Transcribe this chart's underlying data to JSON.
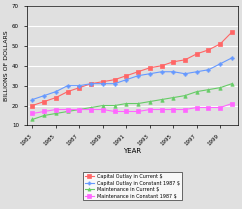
{
  "years": [
    1983,
    1984,
    1985,
    1986,
    1987,
    1988,
    1989,
    1990,
    1991,
    1992,
    1993,
    1994,
    1995,
    1996,
    1997,
    1998,
    1999,
    2000
  ],
  "capital_outlay_current": [
    20,
    22,
    24,
    27,
    29,
    31,
    32,
    33,
    35,
    37,
    39,
    40,
    42,
    43,
    46,
    48,
    51,
    57
  ],
  "capital_outlay_constant": [
    23,
    25,
    27,
    30,
    30,
    31,
    31,
    31,
    33,
    35,
    36,
    37,
    37,
    36,
    37,
    38,
    41,
    44
  ],
  "maintenance_current": [
    13,
    15,
    16,
    17,
    18,
    19,
    20,
    20,
    21,
    21,
    22,
    23,
    24,
    25,
    27,
    28,
    29,
    31
  ],
  "maintenance_constant": [
    16,
    17,
    18,
    18,
    18,
    18,
    18,
    17,
    17,
    17,
    18,
    18,
    18,
    18,
    19,
    19,
    19,
    21
  ],
  "xlabel": "YEAR",
  "ylabel": "BILLIONS OF DOLLARS",
  "ylim": [
    10,
    70
  ],
  "yticks": [
    10,
    20,
    30,
    40,
    50,
    60,
    70
  ],
  "xticks": [
    1983,
    1985,
    1987,
    1989,
    1991,
    1993,
    1995,
    1997,
    1999
  ],
  "legend": [
    "Capital Outlay in Current $",
    "Capital Outlay in Constant 1987 $",
    "Maintenance in Current $",
    "Maintenance in Constant 1987 $"
  ],
  "colors": [
    "#ff6666",
    "#6699ff",
    "#66cc66",
    "#ff66ff"
  ],
  "markers": [
    "s",
    "P",
    "^",
    "s"
  ],
  "bg_color": "#e0e0e0",
  "grid_color": "#ffffff"
}
